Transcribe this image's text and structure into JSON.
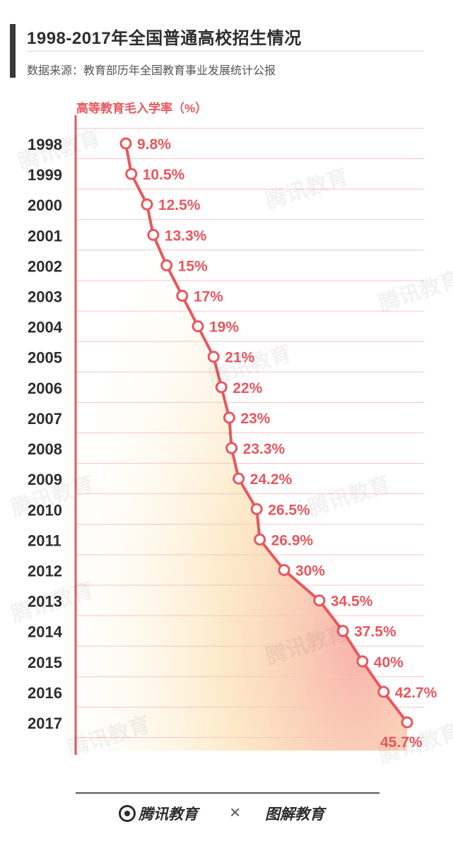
{
  "header": {
    "title": "1998-2017年全国普通高校招生情况",
    "source": "数据来源：教育部历年全国教育事业发展统计公报"
  },
  "chart_data": {
    "type": "line",
    "ylabel": "高等教育毛入学率（%）",
    "categories": [
      "1998",
      "1999",
      "2000",
      "2001",
      "2002",
      "2003",
      "2004",
      "2005",
      "2006",
      "2007",
      "2008",
      "2009",
      "2010",
      "2011",
      "2012",
      "2013",
      "2014",
      "2015",
      "2016",
      "2017"
    ],
    "series": [
      {
        "values": [
          9.8,
          10.5,
          12.5,
          13.3,
          15,
          17,
          19,
          21,
          22,
          23,
          23.3,
          24.2,
          26.5,
          26.9,
          30,
          34.5,
          37.5,
          40,
          42.7,
          45.7
        ]
      }
    ],
    "data_labels": [
      "9.8%",
      "10.5%",
      "12.5%",
      "13.3%",
      "15%",
      "17%",
      "19%",
      "21%",
      "22%",
      "23%",
      "23.3%",
      "24.2%",
      "26.5%",
      "26.9%",
      "30%",
      "34.5%",
      "37.5%",
      "40%",
      "42.7%",
      "45.7%"
    ],
    "grid": true,
    "colors": {
      "line": "#e8585e",
      "axis": "#e8585e",
      "grid": "#f4c6c6",
      "year_text": "#2d2d2d"
    }
  },
  "watermark": "腾讯教育",
  "footer": {
    "logo_left": "腾讯教育",
    "cross": "×",
    "logo_right": "图解教育"
  }
}
